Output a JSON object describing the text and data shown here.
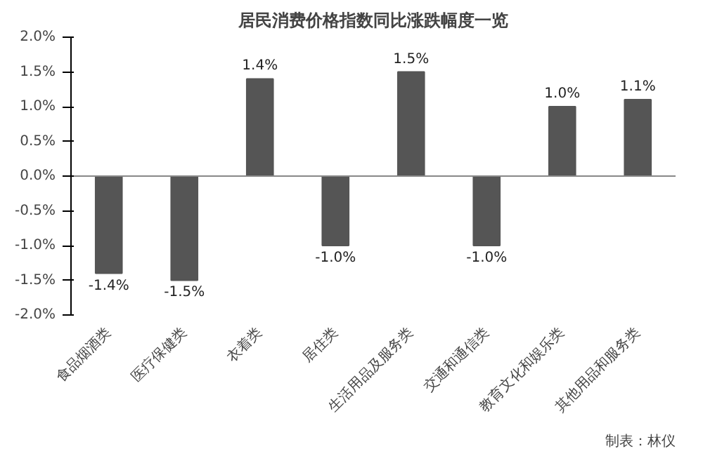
{
  "chart_data": {
    "type": "bar",
    "title": "居民消费价格指数同比涨跌幅度一览",
    "categories": [
      "食品烟酒类",
      "医疗保健类",
      "衣着类",
      "居住类",
      "生活用品及服务类",
      "交通和通信类",
      "教育文化和娱乐类",
      "其他用品和服务类"
    ],
    "values": [
      -1.4,
      -1.5,
      1.4,
      -1.0,
      1.5,
      -1.0,
      1.0,
      1.1
    ],
    "value_labels": [
      "-1.4%",
      "-1.5%",
      "1.4%",
      "-1.0%",
      "1.5%",
      "-1.0%",
      "1.0%",
      "1.1%"
    ],
    "color": "#555555",
    "ylim": [
      -2.0,
      2.0
    ],
    "yticks": [
      {
        "value": -2.0,
        "label": "-2.0%"
      },
      {
        "value": -1.5,
        "label": "-1.5%"
      },
      {
        "value": -1.0,
        "label": "-1.0%"
      },
      {
        "value": -0.5,
        "label": "-0.5%"
      },
      {
        "value": 0.0,
        "label": "0.0%"
      },
      {
        "value": 0.5,
        "label": "0.5%"
      },
      {
        "value": 1.0,
        "label": "1.0%"
      },
      {
        "value": 1.5,
        "label": "1.5%"
      },
      {
        "value": 2.0,
        "label": "2.0%"
      }
    ],
    "annotations": [
      "制表：林仪"
    ]
  }
}
